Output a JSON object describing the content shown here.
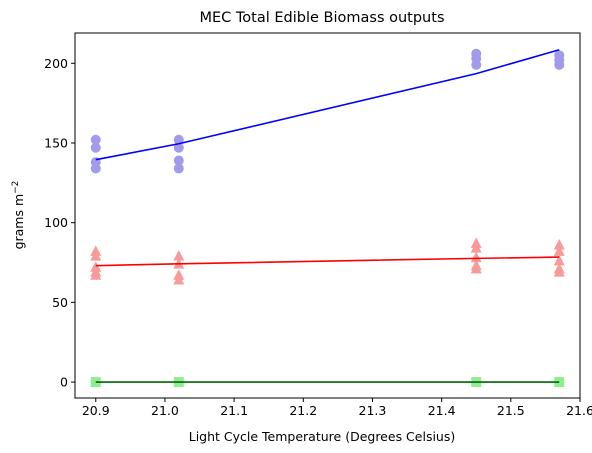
{
  "chart_data": {
    "type": "scatter",
    "title": "MEC Total Edible Biomass outputs",
    "xlabel": "Light Cycle Temperature (Degrees Celsius)",
    "ylabel": "grams m",
    "ylabel_exp": "−2",
    "xlim": [
      20.87,
      21.6
    ],
    "ylim": [
      -10,
      219
    ],
    "x_ticks": [
      "20.9",
      "21.0",
      "21.1",
      "21.2",
      "21.3",
      "21.4",
      "21.5",
      "21.6"
    ],
    "y_ticks": [
      "0",
      "50",
      "100",
      "150",
      "200"
    ],
    "grid": false,
    "legend": "none",
    "series": [
      {
        "marker": "circle",
        "color": "#a29bec",
        "line_color": "#0000ff",
        "points": [
          [
            20.9,
            152
          ],
          [
            20.9,
            147
          ],
          [
            20.9,
            138
          ],
          [
            20.9,
            134
          ],
          [
            21.02,
            152
          ],
          [
            21.02,
            147
          ],
          [
            21.02,
            139
          ],
          [
            21.02,
            134
          ],
          [
            21.45,
            206
          ],
          [
            21.45,
            203
          ],
          [
            21.45,
            199
          ],
          [
            21.57,
            205
          ],
          [
            21.57,
            202
          ],
          [
            21.57,
            199
          ]
        ],
        "fit": [
          [
            20.9,
            139.5
          ],
          [
            21.02,
            149.5
          ],
          [
            21.45,
            193.5
          ],
          [
            21.57,
            208.5
          ]
        ]
      },
      {
        "marker": "triangle",
        "color": "#f79a9a",
        "line_color": "#ff0000",
        "points": [
          [
            20.9,
            82
          ],
          [
            20.9,
            79
          ],
          [
            20.9,
            72
          ],
          [
            20.9,
            69
          ],
          [
            20.9,
            67
          ],
          [
            21.02,
            79
          ],
          [
            21.02,
            74
          ],
          [
            21.02,
            67
          ],
          [
            21.02,
            64
          ],
          [
            21.45,
            87
          ],
          [
            21.45,
            84
          ],
          [
            21.45,
            78
          ],
          [
            21.45,
            73
          ],
          [
            21.45,
            71
          ],
          [
            21.57,
            86
          ],
          [
            21.57,
            82
          ],
          [
            21.57,
            76
          ],
          [
            21.57,
            71
          ],
          [
            21.57,
            69
          ]
        ],
        "fit": [
          [
            20.9,
            73
          ],
          [
            21.02,
            74.2
          ],
          [
            21.45,
            77.6
          ],
          [
            21.57,
            78.4
          ]
        ]
      },
      {
        "marker": "square",
        "color": "#90ee90",
        "line_color": "#006400",
        "points": [
          [
            20.9,
            0
          ],
          [
            21.02,
            0
          ],
          [
            21.45,
            0
          ],
          [
            21.57,
            0
          ]
        ],
        "fit": [
          [
            20.9,
            0
          ],
          [
            21.02,
            0
          ],
          [
            21.45,
            0
          ],
          [
            21.57,
            0
          ]
        ]
      }
    ]
  }
}
